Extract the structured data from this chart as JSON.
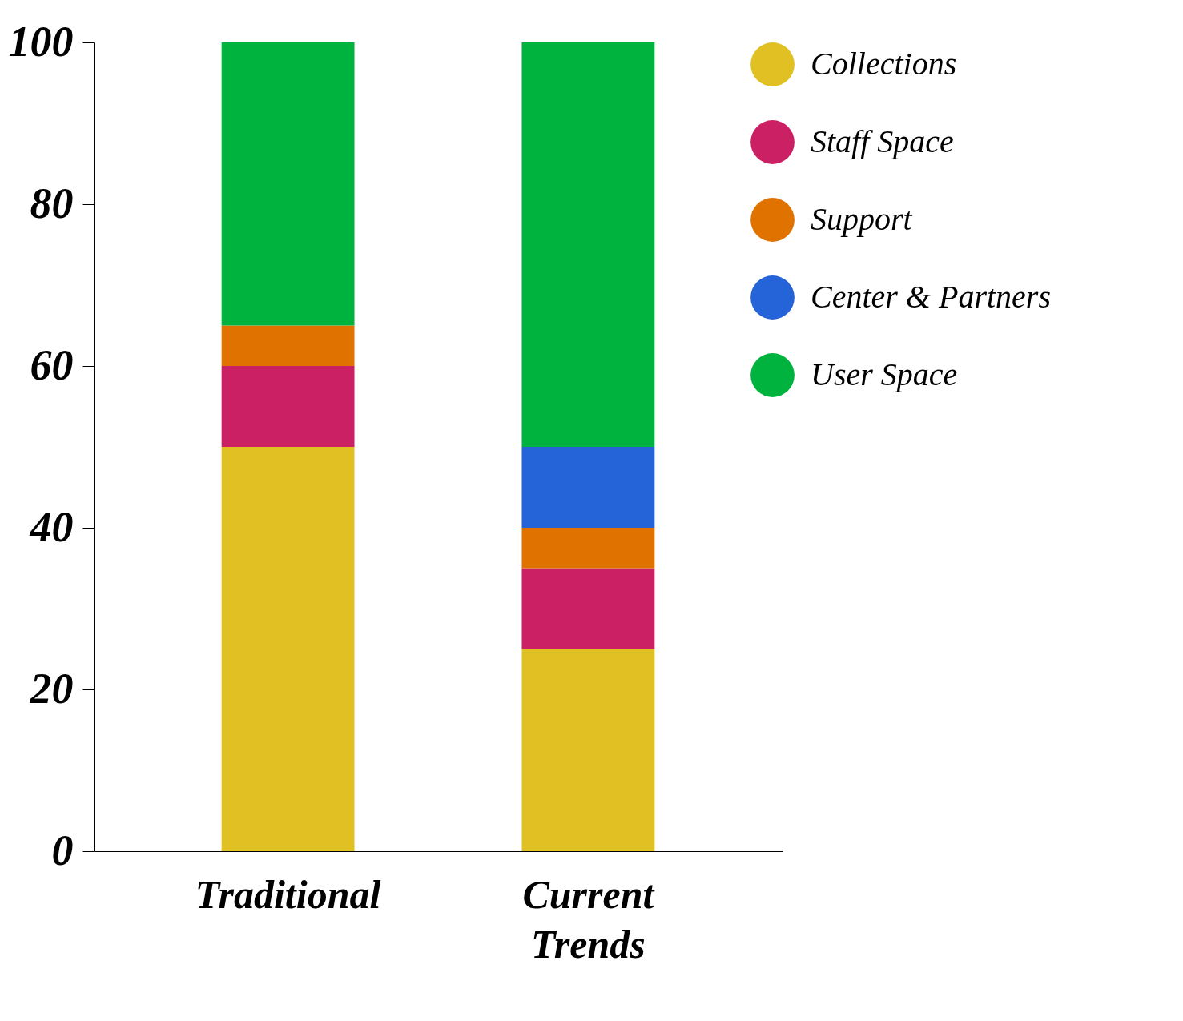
{
  "chart_data": {
    "type": "bar",
    "stacked": true,
    "categories": [
      "Traditional",
      "Current Trends"
    ],
    "series": [
      {
        "name": "Collections",
        "color": "#e0c022",
        "values": [
          50,
          25
        ]
      },
      {
        "name": "Staff Space",
        "color": "#cc2064",
        "values": [
          10,
          10
        ]
      },
      {
        "name": "Support",
        "color": "#e07300",
        "values": [
          5,
          5
        ]
      },
      {
        "name": "Center & Partners",
        "color": "#2563d8",
        "values": [
          null,
          10
        ]
      },
      {
        "name": "User Space",
        "color": "#00b33f",
        "values": [
          35,
          50
        ]
      }
    ],
    "ylim": [
      0,
      100
    ],
    "yticks": [
      0,
      20,
      40,
      60,
      80,
      100
    ],
    "grid": false,
    "legend": "right"
  }
}
